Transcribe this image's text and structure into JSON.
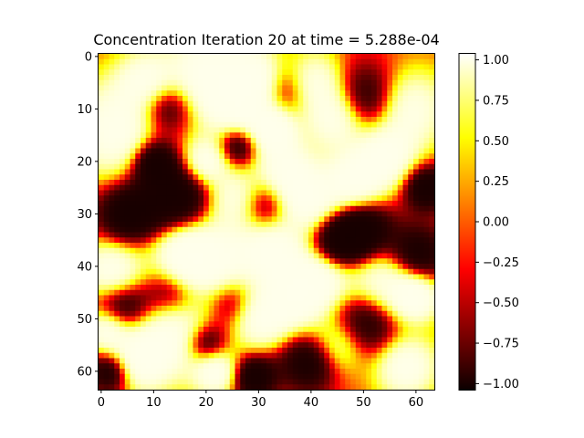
{
  "figure": {
    "title": "Concentration Iteration 20 at time = 5.288e-04"
  },
  "chart_data": {
    "type": "heatmap",
    "title": "Concentration Iteration 20 at time = 5.288e-04",
    "xlabel": "",
    "ylabel": "",
    "grid": false,
    "colormap": "hot",
    "colormap_stops": [
      "#0b0000",
      "#ff0000",
      "#ffff00",
      "#ffffff"
    ],
    "resolution": [
      64,
      64
    ],
    "x_range": [
      0,
      63
    ],
    "y_range": [
      0,
      63
    ],
    "y_inverted": true,
    "x_ticks": [
      "0",
      "10",
      "20",
      "30",
      "40",
      "50",
      "60"
    ],
    "x_tick_values": [
      0,
      10,
      20,
      30,
      40,
      50,
      60
    ],
    "y_ticks": [
      "0",
      "10",
      "20",
      "30",
      "40",
      "50",
      "60"
    ],
    "y_tick_values": [
      0,
      10,
      20,
      30,
      40,
      50,
      60
    ],
    "value_range": [
      -1.04,
      1.04
    ],
    "colorbar": {
      "ticks": [
        "1.00",
        "0.75",
        "0.50",
        "0.25",
        "0.00",
        "−0.25",
        "−0.50",
        "−0.75",
        "−1.00"
      ],
      "tick_values": [
        1.0,
        0.75,
        0.5,
        0.25,
        0.0,
        -0.25,
        -0.5,
        -0.75,
        -1.0
      ]
    },
    "regions_note_values": {
      "high": 1.0,
      "low": -1.0
    }
  }
}
